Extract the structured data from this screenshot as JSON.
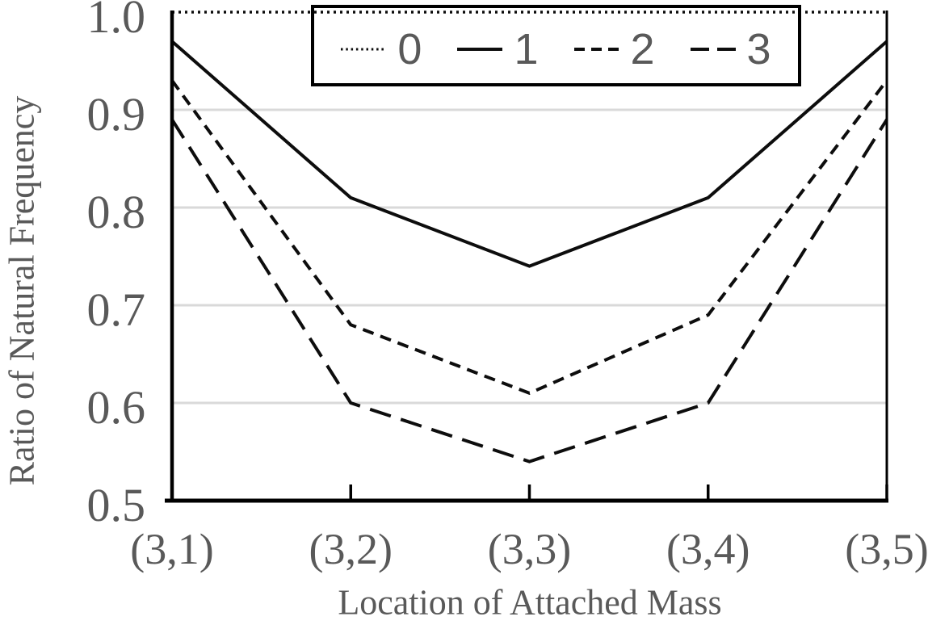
{
  "colors": {
    "line": "#0d0d0d",
    "axis": "#000000",
    "gridline": "#d9d9d9",
    "label": "#595959",
    "background": "#ffffff"
  },
  "chart_data": {
    "type": "line",
    "title": "",
    "xlabel": "Location of Attached Mass",
    "ylabel": "Ratio of Natural Frequency",
    "categories": [
      "(3,1)",
      "(3,2)",
      "(3,3)",
      "(3,4)",
      "(3,5)"
    ],
    "series": [
      {
        "name": "0",
        "dash": "dotted",
        "values": [
          1.0,
          1.0,
          1.0,
          1.0,
          1.0
        ]
      },
      {
        "name": "1",
        "dash": "solid",
        "values": [
          0.97,
          0.81,
          0.74,
          0.81,
          0.97
        ]
      },
      {
        "name": "2",
        "dash": "short-dash",
        "values": [
          0.93,
          0.68,
          0.61,
          0.69,
          0.93
        ]
      },
      {
        "name": "3",
        "dash": "long-dash",
        "values": [
          0.89,
          0.6,
          0.54,
          0.6,
          0.89
        ]
      }
    ],
    "ylim": [
      0.5,
      1.0
    ],
    "yticks": [
      1.0,
      0.9,
      0.8,
      0.7,
      0.6,
      0.5
    ],
    "ytick_labels": [
      "1.0",
      "0.9",
      "0.8",
      "0.7",
      "0.6",
      "0.5"
    ],
    "grid": "horizontal",
    "legend_position": "top-center",
    "legend_labels": [
      "0",
      "1",
      "2",
      "3"
    ]
  }
}
